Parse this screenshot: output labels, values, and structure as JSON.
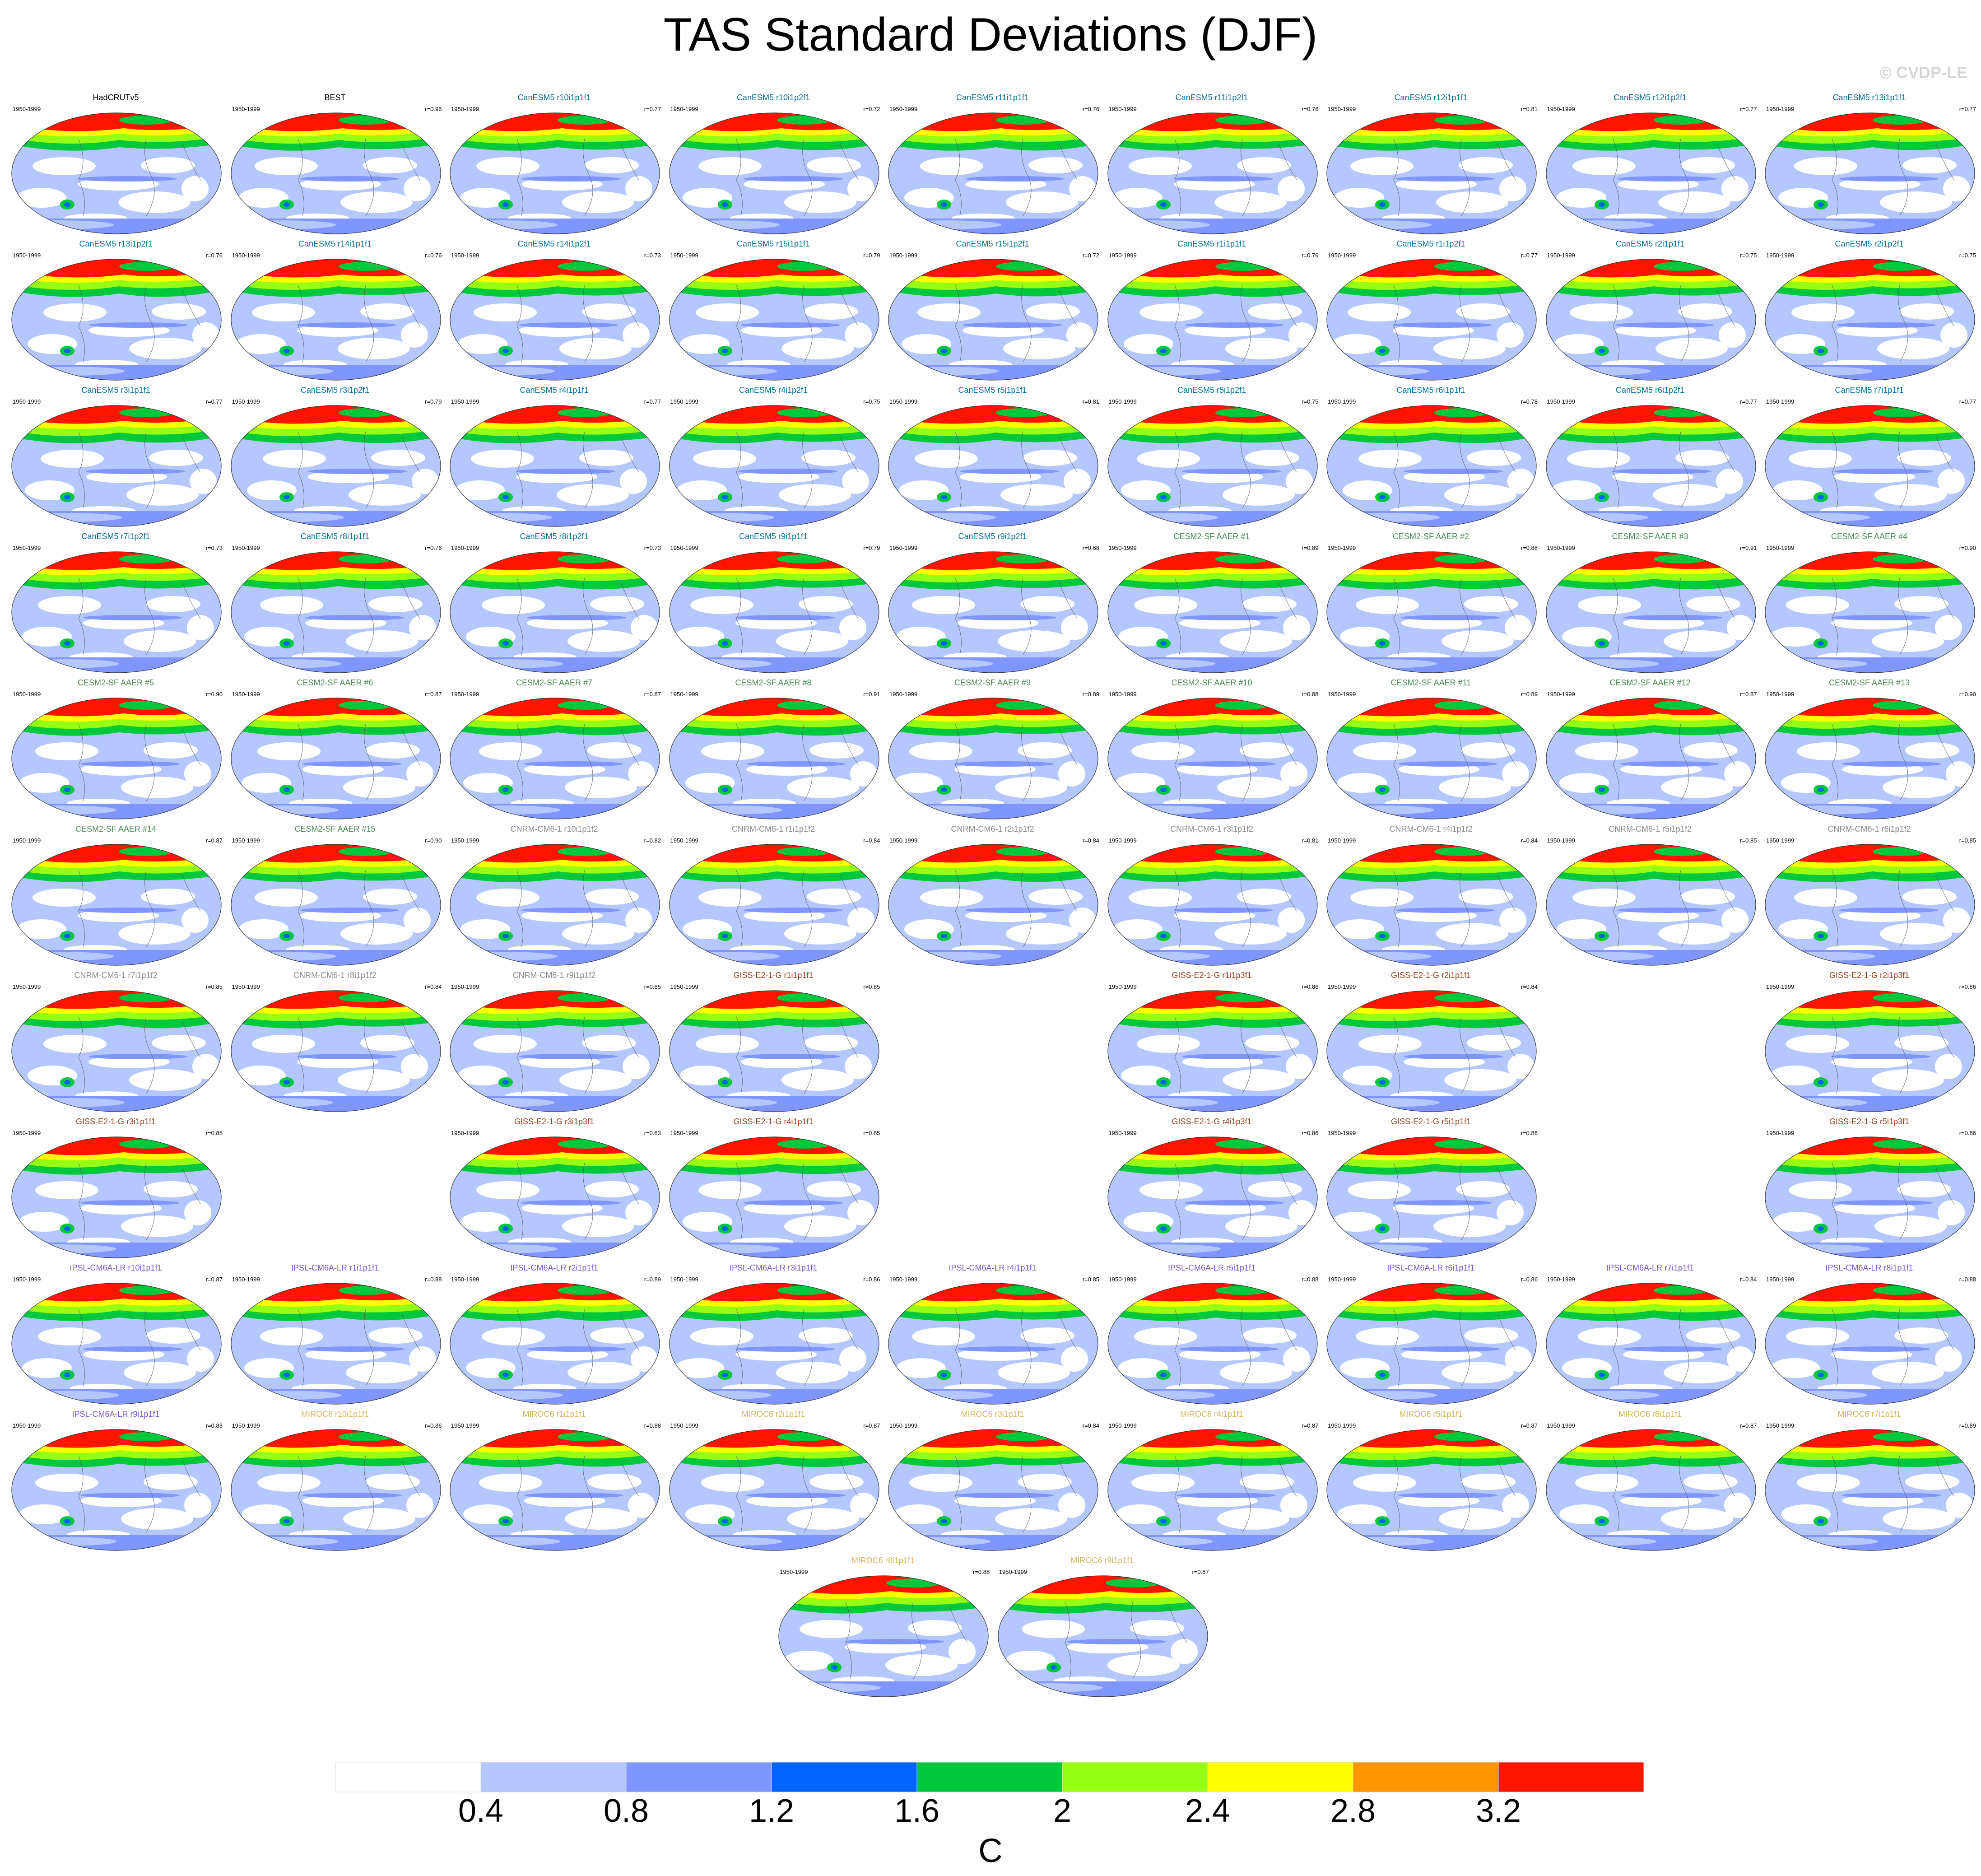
{
  "title": "TAS Standard Deviations (DJF)",
  "watermark": "© CVDP-LE",
  "units": "C",
  "colorbar": {
    "ticks": [
      "0.4",
      "0.8",
      "1.2",
      "1.6",
      "2",
      "2.4",
      "2.8",
      "3.2"
    ],
    "colors": [
      "#ffffff",
      "#b4c8ff",
      "#7f96ff",
      "#0064ff",
      "#00c83c",
      "#96ff14",
      "#ffff00",
      "#ff9600",
      "#ff1400"
    ]
  },
  "group_colors": {
    "obs": "#000000",
    "CanESM5": "#00709a",
    "CESM2-SF AAER": "#4c8a57",
    "CNRM-CM6-1": "#8a8a8a",
    "GISS-E2-1-G": "#a03c1e",
    "IPSL-CM6A-LR": "#7a55c8",
    "MIROC6": "#d7b45a"
  },
  "panels": [
    {
      "row": 0,
      "col": 0,
      "title": "HadCRUTv5",
      "years": "1950-1999",
      "r": "",
      "group": "obs"
    },
    {
      "row": 0,
      "col": 1,
      "title": "BEST",
      "years": "1950-1999",
      "r": "r=0.96",
      "group": "obs"
    },
    {
      "row": 0,
      "col": 2,
      "title": "CanESM5 r10i1p1f1",
      "years": "1950-1999",
      "r": "r=0.77",
      "group": "CanESM5"
    },
    {
      "row": 0,
      "col": 3,
      "title": "CanESM5 r10i1p2f1",
      "years": "1950-1999",
      "r": "r=0.72",
      "group": "CanESM5"
    },
    {
      "row": 0,
      "col": 4,
      "title": "CanESM5 r11i1p1f1",
      "years": "1950-1999",
      "r": "r=0.76",
      "group": "CanESM5"
    },
    {
      "row": 0,
      "col": 5,
      "title": "CanESM5 r11i1p2f1",
      "years": "1950-1999",
      "r": "r=0.76",
      "group": "CanESM5"
    },
    {
      "row": 0,
      "col": 6,
      "title": "CanESM5 r12i1p1f1",
      "years": "1950-1999",
      "r": "r=0.81",
      "group": "CanESM5"
    },
    {
      "row": 0,
      "col": 7,
      "title": "CanESM5 r12i1p2f1",
      "years": "1950-1999",
      "r": "r=0.77",
      "group": "CanESM5"
    },
    {
      "row": 0,
      "col": 8,
      "title": "CanESM5 r13i1p1f1",
      "years": "1950-1999",
      "r": "r=0.77",
      "group": "CanESM5"
    },
    {
      "row": 1,
      "col": 0,
      "title": "CanESM5 r13i1p2f1",
      "years": "1950-1999",
      "r": "r=0.76",
      "group": "CanESM5"
    },
    {
      "row": 1,
      "col": 1,
      "title": "CanESM5 r14i1p1f1",
      "years": "1950-1999",
      "r": "r=0.76",
      "group": "CanESM5"
    },
    {
      "row": 1,
      "col": 2,
      "title": "CanESM5 r14i1p2f1",
      "years": "1950-1999",
      "r": "r=0.73",
      "group": "CanESM5"
    },
    {
      "row": 1,
      "col": 3,
      "title": "CanESM5 r15i1p1f1",
      "years": "1950-1999",
      "r": "r=0.79",
      "group": "CanESM5"
    },
    {
      "row": 1,
      "col": 4,
      "title": "CanESM5 r15i1p2f1",
      "years": "1950-1999",
      "r": "r=0.72",
      "group": "CanESM5"
    },
    {
      "row": 1,
      "col": 5,
      "title": "CanESM5 r1i1p1f1",
      "years": "1950-1999",
      "r": "r=0.76",
      "group": "CanESM5"
    },
    {
      "row": 1,
      "col": 6,
      "title": "CanESM5 r1i1p2f1",
      "years": "1950-1999",
      "r": "r=0.77",
      "group": "CanESM5"
    },
    {
      "row": 1,
      "col": 7,
      "title": "CanESM5 r2i1p1f1",
      "years": "1950-1999",
      "r": "r=0.75",
      "group": "CanESM5"
    },
    {
      "row": 1,
      "col": 8,
      "title": "CanESM5 r2i1p2f1",
      "years": "1950-1999",
      "r": "r=0.75",
      "group": "CanESM5"
    },
    {
      "row": 2,
      "col": 0,
      "title": "CanESM5 r3i1p1f1",
      "years": "1950-1999",
      "r": "r=0.77",
      "group": "CanESM5"
    },
    {
      "row": 2,
      "col": 1,
      "title": "CanESM5 r3i1p2f1",
      "years": "1950-1999",
      "r": "r=0.79",
      "group": "CanESM5"
    },
    {
      "row": 2,
      "col": 2,
      "title": "CanESM5 r4i1p1f1",
      "years": "1950-1999",
      "r": "r=0.77",
      "group": "CanESM5"
    },
    {
      "row": 2,
      "col": 3,
      "title": "CanESM5 r4i1p2f1",
      "years": "1950-1999",
      "r": "r=0.75",
      "group": "CanESM5"
    },
    {
      "row": 2,
      "col": 4,
      "title": "CanESM5 r5i1p1f1",
      "years": "1950-1999",
      "r": "r=0.81",
      "group": "CanESM5"
    },
    {
      "row": 2,
      "col": 5,
      "title": "CanESM5 r5i1p2f1",
      "years": "1950-1999",
      "r": "r=0.75",
      "group": "CanESM5"
    },
    {
      "row": 2,
      "col": 6,
      "title": "CanESM5 r6i1p1f1",
      "years": "1950-1999",
      "r": "r=0.78",
      "group": "CanESM5"
    },
    {
      "row": 2,
      "col": 7,
      "title": "CanESM5 r6i1p2f1",
      "years": "1950-1999",
      "r": "r=0.77",
      "group": "CanESM5"
    },
    {
      "row": 2,
      "col": 8,
      "title": "CanESM5 r7i1p1f1",
      "years": "1950-1999",
      "r": "r=0.77",
      "group": "CanESM5"
    },
    {
      "row": 3,
      "col": 0,
      "title": "CanESM5 r7i1p2f1",
      "years": "1950-1999",
      "r": "r=0.73",
      "group": "CanESM5"
    },
    {
      "row": 3,
      "col": 1,
      "title": "CanESM5 r8i1p1f1",
      "years": "1950-1999",
      "r": "r=0.76",
      "group": "CanESM5"
    },
    {
      "row": 3,
      "col": 2,
      "title": "CanESM5 r8i1p2f1",
      "years": "1950-1999",
      "r": "r=0.73",
      "group": "CanESM5"
    },
    {
      "row": 3,
      "col": 3,
      "title": "CanESM5 r9i1p1f1",
      "years": "1950-1999",
      "r": "r=0.79",
      "group": "CanESM5"
    },
    {
      "row": 3,
      "col": 4,
      "title": "CanESM5 r9i1p2f1",
      "years": "1950-1999",
      "r": "r=0.68",
      "group": "CanESM5"
    },
    {
      "row": 3,
      "col": 5,
      "title": "CESM2-SF AAER #1",
      "years": "1950-1999",
      "r": "r=0.89",
      "group": "CESM2-SF AAER"
    },
    {
      "row": 3,
      "col": 6,
      "title": "CESM2-SF AAER #2",
      "years": "1950-1999",
      "r": "r=0.88",
      "group": "CESM2-SF AAER"
    },
    {
      "row": 3,
      "col": 7,
      "title": "CESM2-SF AAER #3",
      "years": "1950-1999",
      "r": "r=0.91",
      "group": "CESM2-SF AAER"
    },
    {
      "row": 3,
      "col": 8,
      "title": "CESM2-SF AAER #4",
      "years": "1950-1999",
      "r": "r=0.90",
      "group": "CESM2-SF AAER"
    },
    {
      "row": 4,
      "col": 0,
      "title": "CESM2-SF AAER #5",
      "years": "1950-1999",
      "r": "r=0.90",
      "group": "CESM2-SF AAER"
    },
    {
      "row": 4,
      "col": 1,
      "title": "CESM2-SF AAER #6",
      "years": "1950-1999",
      "r": "r=0.87",
      "group": "CESM2-SF AAER"
    },
    {
      "row": 4,
      "col": 2,
      "title": "CESM2-SF AAER #7",
      "years": "1950-1999",
      "r": "r=0.87",
      "group": "CESM2-SF AAER"
    },
    {
      "row": 4,
      "col": 3,
      "title": "CESM2-SF AAER #8",
      "years": "1950-1999",
      "r": "r=0.91",
      "group": "CESM2-SF AAER"
    },
    {
      "row": 4,
      "col": 4,
      "title": "CESM2-SF AAER #9",
      "years": "1950-1999",
      "r": "r=0.89",
      "group": "CESM2-SF AAER"
    },
    {
      "row": 4,
      "col": 5,
      "title": "CESM2-SF AAER #10",
      "years": "1950-1999",
      "r": "r=0.88",
      "group": "CESM2-SF AAER"
    },
    {
      "row": 4,
      "col": 6,
      "title": "CESM2-SF AAER #11",
      "years": "1950-1999",
      "r": "r=0.89",
      "group": "CESM2-SF AAER"
    },
    {
      "row": 4,
      "col": 7,
      "title": "CESM2-SF AAER #12",
      "years": "1950-1999",
      "r": "r=0.87",
      "group": "CESM2-SF AAER"
    },
    {
      "row": 4,
      "col": 8,
      "title": "CESM2-SF AAER #13",
      "years": "1950-1999",
      "r": "r=0.90",
      "group": "CESM2-SF AAER"
    },
    {
      "row": 5,
      "col": 0,
      "title": "CESM2-SF AAER #14",
      "years": "1950-1999",
      "r": "r=0.87",
      "group": "CESM2-SF AAER"
    },
    {
      "row": 5,
      "col": 1,
      "title": "CESM2-SF AAER #15",
      "years": "1950-1999",
      "r": "r=0.90",
      "group": "CESM2-SF AAER"
    },
    {
      "row": 5,
      "col": 2,
      "title": "CNRM-CM6-1 r10i1p1f2",
      "years": "1950-1999",
      "r": "r=0.82",
      "group": "CNRM-CM6-1"
    },
    {
      "row": 5,
      "col": 3,
      "title": "CNRM-CM6-1 r1i1p1f2",
      "years": "1950-1999",
      "r": "r=0.84",
      "group": "CNRM-CM6-1"
    },
    {
      "row": 5,
      "col": 4,
      "title": "CNRM-CM6-1 r2i1p1f2",
      "years": "1950-1999",
      "r": "r=0.84",
      "group": "CNRM-CM6-1"
    },
    {
      "row": 5,
      "col": 5,
      "title": "CNRM-CM6-1 r3i1p1f2",
      "years": "1950-1999",
      "r": "r=0.81",
      "group": "CNRM-CM6-1"
    },
    {
      "row": 5,
      "col": 6,
      "title": "CNRM-CM6-1 r4i1p1f2",
      "years": "1950-1999",
      "r": "r=0.84",
      "group": "CNRM-CM6-1"
    },
    {
      "row": 5,
      "col": 7,
      "title": "CNRM-CM6-1 r5i1p1f2",
      "years": "1950-1999",
      "r": "r=0.85",
      "group": "CNRM-CM6-1"
    },
    {
      "row": 5,
      "col": 8,
      "title": "CNRM-CM6-1 r6i1p1f2",
      "years": "1950-1999",
      "r": "r=0.85",
      "group": "CNRM-CM6-1"
    },
    {
      "row": 6,
      "col": 0,
      "title": "CNRM-CM6-1 r7i1p1f2",
      "years": "1950-1999",
      "r": "r=0.85",
      "group": "CNRM-CM6-1"
    },
    {
      "row": 6,
      "col": 1,
      "title": "CNRM-CM6-1 r8i1p1f2",
      "years": "1950-1999",
      "r": "r=0.84",
      "group": "CNRM-CM6-1"
    },
    {
      "row": 6,
      "col": 2,
      "title": "CNRM-CM6-1 r9i1p1f2",
      "years": "1950-1999",
      "r": "r=0.85",
      "group": "CNRM-CM6-1"
    },
    {
      "row": 6,
      "col": 3,
      "title": "GISS-E2-1-G r1i1p1f1",
      "years": "1950-1999",
      "r": "r=0.85",
      "group": "GISS-E2-1-G"
    },
    {
      "row": 6,
      "col": 5,
      "title": "GISS-E2-1-G r1i1p3f1",
      "years": "1950-1999",
      "r": "r=0.86",
      "group": "GISS-E2-1-G"
    },
    {
      "row": 6,
      "col": 6,
      "title": "GISS-E2-1-G r2i1p1f1",
      "years": "1950-1999",
      "r": "r=0.84",
      "group": "GISS-E2-1-G"
    },
    {
      "row": 6,
      "col": 8,
      "title": "GISS-E2-1-G r2i1p3f1",
      "years": "1950-1999",
      "r": "r=0.86",
      "group": "GISS-E2-1-G"
    },
    {
      "row": 7,
      "col": 0,
      "title": "GISS-E2-1-G r3i1p1f1",
      "years": "1950-1999",
      "r": "r=0.85",
      "group": "GISS-E2-1-G"
    },
    {
      "row": 7,
      "col": 2,
      "title": "GISS-E2-1-G r3i1p3f1",
      "years": "1950-1999",
      "r": "r=0.83",
      "group": "GISS-E2-1-G"
    },
    {
      "row": 7,
      "col": 3,
      "title": "GISS-E2-1-G r4i1p1f1",
      "years": "1950-1999",
      "r": "r=0.85",
      "group": "GISS-E2-1-G"
    },
    {
      "row": 7,
      "col": 5,
      "title": "GISS-E2-1-G r4i1p3f1",
      "years": "1950-1999",
      "r": "r=0.86",
      "group": "GISS-E2-1-G"
    },
    {
      "row": 7,
      "col": 6,
      "title": "GISS-E2-1-G r5i1p1f1",
      "years": "1950-1999",
      "r": "r=0.86",
      "group": "GISS-E2-1-G"
    },
    {
      "row": 7,
      "col": 8,
      "title": "GISS-E2-1-G r5i1p3f1",
      "years": "1950-1999",
      "r": "r=0.86",
      "group": "GISS-E2-1-G"
    },
    {
      "row": 8,
      "col": 0,
      "title": "IPSL-CM6A-LR r10i1p1f1",
      "years": "1950-1999",
      "r": "r=0.87",
      "group": "IPSL-CM6A-LR"
    },
    {
      "row": 8,
      "col": 1,
      "title": "IPSL-CM6A-LR r1i1p1f1",
      "years": "1950-1999",
      "r": "r=0.88",
      "group": "IPSL-CM6A-LR"
    },
    {
      "row": 8,
      "col": 2,
      "title": "IPSL-CM6A-LR r2i1p1f1",
      "years": "1950-1999",
      "r": "r=0.89",
      "group": "IPSL-CM6A-LR"
    },
    {
      "row": 8,
      "col": 3,
      "title": "IPSL-CM6A-LR r3i1p1f1",
      "years": "1950-1999",
      "r": "r=0.86",
      "group": "IPSL-CM6A-LR"
    },
    {
      "row": 8,
      "col": 4,
      "title": "IPSL-CM6A-LR r4i1p1f1",
      "years": "1950-1999",
      "r": "r=0.85",
      "group": "IPSL-CM6A-LR"
    },
    {
      "row": 8,
      "col": 5,
      "title": "IPSL-CM6A-LR r5i1p1f1",
      "years": "1950-1999",
      "r": "r=0.88",
      "group": "IPSL-CM6A-LR"
    },
    {
      "row": 8,
      "col": 6,
      "title": "IPSL-CM6A-LR r6i1p1f1",
      "years": "1950-1999",
      "r": "r=0.86",
      "group": "IPSL-CM6A-LR"
    },
    {
      "row": 8,
      "col": 7,
      "title": "IPSL-CM6A-LR r7i1p1f1",
      "years": "1950-1999",
      "r": "r=0.84",
      "group": "IPSL-CM6A-LR"
    },
    {
      "row": 8,
      "col": 8,
      "title": "IPSL-CM6A-LR r8i1p1f1",
      "years": "1950-1999",
      "r": "r=0.88",
      "group": "IPSL-CM6A-LR"
    },
    {
      "row": 9,
      "col": 0,
      "title": "IPSL-CM6A-LR r9i1p1f1",
      "years": "1950-1999",
      "r": "r=0.83",
      "group": "IPSL-CM6A-LR"
    },
    {
      "row": 9,
      "col": 1,
      "title": "MIROC6 r10i1p1f1",
      "years": "1950-1999",
      "r": "r=0.86",
      "group": "MIROC6"
    },
    {
      "row": 9,
      "col": 2,
      "title": "MIROC6 r1i1p1f1",
      "years": "1950-1999",
      "r": "r=0.88",
      "group": "MIROC6"
    },
    {
      "row": 9,
      "col": 3,
      "title": "MIROC6 r2i1p1f1",
      "years": "1950-1999",
      "r": "r=0.87",
      "group": "MIROC6"
    },
    {
      "row": 9,
      "col": 4,
      "title": "MIROC6 r3i1p1f1",
      "years": "1950-1999",
      "r": "r=0.84",
      "group": "MIROC6"
    },
    {
      "row": 9,
      "col": 5,
      "title": "MIROC6 r4i1p1f1",
      "years": "1950-1999",
      "r": "r=0.87",
      "group": "MIROC6"
    },
    {
      "row": 9,
      "col": 6,
      "title": "MIROC6 r5i1p1f1",
      "years": "1950-1999",
      "r": "r=0.87",
      "group": "MIROC6"
    },
    {
      "row": 9,
      "col": 7,
      "title": "MIROC6 r6i1p1f1",
      "years": "1950-1999",
      "r": "r=0.87",
      "group": "MIROC6"
    },
    {
      "row": 9,
      "col": 8,
      "title": "MIROC6 r7i1p1f1",
      "years": "1950-1999",
      "r": "r=0.89",
      "group": "MIROC6"
    },
    {
      "row": 10,
      "col": 3.5,
      "title": "MIROC6 r8i1p1f1",
      "years": "1950-1999",
      "r": "r=0.88",
      "group": "MIROC6"
    },
    {
      "row": 10,
      "col": 4.5,
      "title": "MIROC6 r9i1p1f1",
      "years": "1950-1999",
      "r": "r=0.87",
      "group": "MIROC6"
    }
  ]
}
